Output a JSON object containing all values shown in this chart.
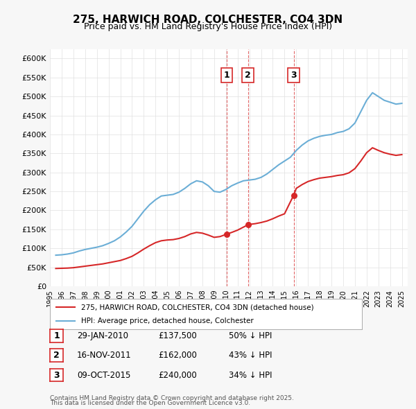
{
  "title": "275, HARWICH ROAD, COLCHESTER, CO4 3DN",
  "subtitle": "Price paid vs. HM Land Registry's House Price Index (HPI)",
  "hpi_label": "HPI: Average price, detached house, Colchester",
  "property_label": "275, HARWICH ROAD, COLCHESTER, CO4 3DN (detached house)",
  "hpi_color": "#6baed6",
  "property_color": "#d62728",
  "vline_color": "#d62728",
  "background_color": "#f7f7f7",
  "plot_bg_color": "#ffffff",
  "ylim": [
    0,
    625000
  ],
  "yticks": [
    0,
    50000,
    100000,
    150000,
    200000,
    250000,
    300000,
    350000,
    400000,
    450000,
    500000,
    550000,
    600000
  ],
  "ytick_labels": [
    "£0",
    "£50K",
    "£100K",
    "£150K",
    "£200K",
    "£250K",
    "£300K",
    "£350K",
    "£400K",
    "£450K",
    "£500K",
    "£550K",
    "£600K"
  ],
  "transactions": [
    {
      "date": "29-JAN-2010",
      "price": 137500,
      "x": 2010.08,
      "label": "1",
      "pct": "50%",
      "dir": "↓"
    },
    {
      "date": "16-NOV-2011",
      "price": 162000,
      "x": 2011.88,
      "label": "2",
      "pct": "43%",
      "dir": "↓"
    },
    {
      "date": "09-OCT-2015",
      "price": 240000,
      "x": 2015.78,
      "label": "3",
      "pct": "34%",
      "dir": "↓"
    }
  ],
  "footer1": "Contains HM Land Registry data © Crown copyright and database right 2025.",
  "footer2": "This data is licensed under the Open Government Licence v3.0.",
  "hpi_data_x": [
    1995.5,
    1996.0,
    1996.5,
    1997.0,
    1997.5,
    1998.0,
    1998.5,
    1999.0,
    1999.5,
    2000.0,
    2000.5,
    2001.0,
    2001.5,
    2002.0,
    2002.5,
    2003.0,
    2003.5,
    2004.0,
    2004.5,
    2005.0,
    2005.5,
    2006.0,
    2006.5,
    2007.0,
    2007.5,
    2008.0,
    2008.5,
    2009.0,
    2009.5,
    2010.0,
    2010.5,
    2011.0,
    2011.5,
    2012.0,
    2012.5,
    2013.0,
    2013.5,
    2014.0,
    2014.5,
    2015.0,
    2015.5,
    2016.0,
    2016.5,
    2017.0,
    2017.5,
    2018.0,
    2018.5,
    2019.0,
    2019.5,
    2020.0,
    2020.5,
    2021.0,
    2021.5,
    2022.0,
    2022.5,
    2023.0,
    2023.5,
    2024.0,
    2024.5,
    2025.0
  ],
  "hpi_data_y": [
    82000,
    83000,
    85000,
    88000,
    93000,
    97000,
    100000,
    103000,
    107000,
    113000,
    120000,
    130000,
    143000,
    158000,
    178000,
    198000,
    215000,
    228000,
    238000,
    240000,
    242000,
    248000,
    258000,
    270000,
    278000,
    275000,
    265000,
    250000,
    248000,
    255000,
    265000,
    272000,
    278000,
    280000,
    282000,
    287000,
    296000,
    308000,
    320000,
    330000,
    340000,
    358000,
    372000,
    383000,
    390000,
    395000,
    398000,
    400000,
    405000,
    408000,
    415000,
    430000,
    460000,
    490000,
    510000,
    500000,
    490000,
    485000,
    480000,
    482000
  ],
  "prop_data_x": [
    1995.5,
    1996.0,
    1996.5,
    1997.0,
    1997.5,
    1998.0,
    1998.5,
    1999.0,
    1999.5,
    2000.0,
    2000.5,
    2001.0,
    2001.5,
    2002.0,
    2002.5,
    2003.0,
    2003.5,
    2004.0,
    2004.5,
    2005.0,
    2005.5,
    2006.0,
    2006.5,
    2007.0,
    2007.5,
    2008.0,
    2008.5,
    2009.0,
    2009.5,
    2010.08,
    2010.5,
    2011.0,
    2011.88,
    2012.0,
    2012.5,
    2013.0,
    2013.5,
    2014.0,
    2014.5,
    2015.0,
    2015.78,
    2016.0,
    2016.5,
    2017.0,
    2017.5,
    2018.0,
    2018.5,
    2019.0,
    2019.5,
    2020.0,
    2020.5,
    2021.0,
    2021.5,
    2022.0,
    2022.5,
    2023.0,
    2023.5,
    2024.0,
    2024.5,
    2025.0
  ],
  "prop_data_y": [
    47000,
    47500,
    48000,
    49000,
    51000,
    53000,
    55000,
    57000,
    59000,
    62000,
    65000,
    68000,
    73000,
    79000,
    88000,
    98000,
    107000,
    115000,
    120000,
    122000,
    123000,
    126000,
    131000,
    138000,
    142000,
    140000,
    135000,
    129000,
    131000,
    137500,
    142000,
    148000,
    162000,
    163000,
    165000,
    168000,
    172000,
    178000,
    185000,
    191000,
    240000,
    258000,
    268000,
    276000,
    281000,
    285000,
    287000,
    289000,
    292000,
    294000,
    299000,
    310000,
    330000,
    352000,
    365000,
    358000,
    352000,
    348000,
    345000,
    347000
  ]
}
